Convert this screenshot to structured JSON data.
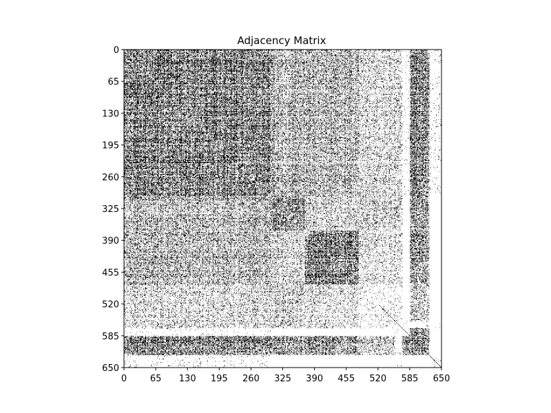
{
  "chart_data": {
    "type": "heatmap",
    "title": "Adjacency Matrix",
    "xlabel": "",
    "ylabel": "",
    "size": 650,
    "xlim": [
      0,
      650
    ],
    "ylim": [
      650,
      0
    ],
    "ticks": [
      0,
      65,
      130,
      195,
      260,
      325,
      390,
      455,
      520,
      585,
      650
    ],
    "grid": false,
    "colors": {
      "edge": "#000000",
      "no_edge": "#ffffff"
    },
    "density_blocks": [
      {
        "rows": [
          0,
          300
        ],
        "cols": [
          0,
          300
        ],
        "density": 0.62
      },
      {
        "rows": [
          0,
          300
        ],
        "cols": [
          300,
          480
        ],
        "density": 0.38
      },
      {
        "rows": [
          0,
          300
        ],
        "cols": [
          480,
          570
        ],
        "density": 0.22
      },
      {
        "rows": [
          0,
          300
        ],
        "cols": [
          570,
          585
        ],
        "density": 0.02
      },
      {
        "rows": [
          0,
          300
        ],
        "cols": [
          585,
          625
        ],
        "density": 0.58
      },
      {
        "rows": [
          0,
          300
        ],
        "cols": [
          625,
          650
        ],
        "density": 0.04
      },
      {
        "rows": [
          300,
          370
        ],
        "cols": [
          0,
          300
        ],
        "density": 0.33
      },
      {
        "rows": [
          300,
          370
        ],
        "cols": [
          300,
          370
        ],
        "density": 0.55
      },
      {
        "rows": [
          300,
          370
        ],
        "cols": [
          370,
          570
        ],
        "density": 0.25
      },
      {
        "rows": [
          300,
          370
        ],
        "cols": [
          585,
          625
        ],
        "density": 0.45
      },
      {
        "rows": [
          370,
          480
        ],
        "cols": [
          0,
          300
        ],
        "density": 0.45
      },
      {
        "rows": [
          370,
          480
        ],
        "cols": [
          300,
          380
        ],
        "density": 0.3
      },
      {
        "rows": [
          370,
          480
        ],
        "cols": [
          380,
          480
        ],
        "density": 0.62
      },
      {
        "rows": [
          370,
          480
        ],
        "cols": [
          480,
          570
        ],
        "density": 0.18
      },
      {
        "rows": [
          370,
          480
        ],
        "cols": [
          585,
          625
        ],
        "density": 0.5
      },
      {
        "rows": [
          480,
          555
        ],
        "cols": [
          0,
          300
        ],
        "density": 0.2
      },
      {
        "rows": [
          480,
          555
        ],
        "cols": [
          300,
          480
        ],
        "density": 0.14
      },
      {
        "rows": [
          480,
          555
        ],
        "cols": [
          480,
          570
        ],
        "density": 0.08
      },
      {
        "rows": [
          480,
          555
        ],
        "cols": [
          585,
          625
        ],
        "density": 0.3
      },
      {
        "rows": [
          555,
          570
        ],
        "cols": [
          0,
          650
        ],
        "density": 0.03
      },
      {
        "rows": [
          570,
          630
        ],
        "cols": [
          0,
          300
        ],
        "density": 0.6
      },
      {
        "rows": [
          570,
          630
        ],
        "cols": [
          300,
          480
        ],
        "density": 0.42
      },
      {
        "rows": [
          570,
          630
        ],
        "cols": [
          480,
          570
        ],
        "density": 0.2
      },
      {
        "rows": [
          570,
          630
        ],
        "cols": [
          585,
          625
        ],
        "density": 0.55
      },
      {
        "rows": [
          630,
          650
        ],
        "cols": [
          0,
          650
        ],
        "density": 0.04
      }
    ]
  }
}
